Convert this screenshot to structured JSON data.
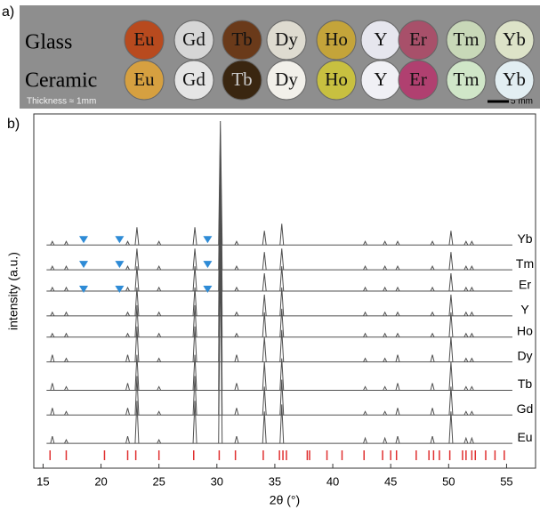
{
  "panel_a": {
    "label": "a)",
    "rows": [
      "Glass",
      "Ceramic"
    ],
    "elements": [
      "Eu",
      "Gd",
      "Tb",
      "Dy",
      "Ho",
      "Y",
      "Er",
      "Tm",
      "Yb"
    ],
    "note": "Thickness ≈ 1mm",
    "scale": "5 mm"
  },
  "chart_data": {
    "type": "spectrum",
    "label": "b)",
    "xlabel": "2θ (°)",
    "ylabel": "intensity (a.u.)",
    "xlim": [
      14.2,
      57.5
    ],
    "xticks": [
      15,
      20,
      25,
      30,
      35,
      40,
      45,
      50,
      55
    ],
    "ylim": [
      0,
      100
    ],
    "x": [
      15.8,
      17.0,
      22.3,
      23.1,
      25.0,
      28.1,
      30.3,
      31.7,
      34.1,
      35.6,
      42.8,
      44.5,
      45.6,
      48.6,
      50.2,
      51.5,
      52.0
    ],
    "color": "#505050",
    "series": [
      {
        "name": "Eu",
        "baseline": 7,
        "values": [
          9,
          8,
          9,
          19,
          8,
          19,
          60,
          9,
          16,
          18,
          8.5,
          8.5,
          9,
          9,
          16,
          8.5,
          8.5
        ]
      },
      {
        "name": "Gd",
        "baseline": 15,
        "values": [
          17,
          16,
          17,
          26,
          16,
          26,
          70,
          17,
          23,
          25,
          16,
          16,
          17,
          17,
          23,
          16,
          16
        ]
      },
      {
        "name": "Tb",
        "baseline": 22,
        "values": [
          24,
          23,
          24,
          32,
          23,
          32,
          75,
          24,
          30,
          31,
          23,
          23,
          24,
          24,
          30,
          23,
          23
        ]
      },
      {
        "name": "Dy",
        "baseline": 30,
        "values": [
          32,
          31,
          32,
          40,
          31,
          40,
          80,
          32,
          37,
          39,
          31,
          31,
          32,
          32,
          37,
          31,
          31
        ]
      },
      {
        "name": "Ho",
        "baseline": 37,
        "values": [
          38,
          38,
          38,
          46,
          38,
          46,
          85,
          38,
          44,
          45,
          38,
          38,
          38,
          38,
          44,
          38,
          38
        ]
      },
      {
        "name": "Y",
        "baseline": 43,
        "values": [
          44,
          44,
          44,
          51,
          44,
          51,
          88,
          44,
          49,
          51,
          44,
          44,
          44,
          44,
          49,
          44,
          44
        ]
      },
      {
        "name": "Er",
        "baseline": 50,
        "values": [
          51,
          51,
          51,
          57,
          51,
          57,
          90,
          51,
          55,
          57,
          51,
          51,
          51,
          51,
          55,
          51,
          51
        ]
      },
      {
        "name": "Tm",
        "baseline": 56,
        "values": [
          57,
          57,
          57,
          62,
          57,
          62,
          94,
          57,
          61,
          62,
          57,
          57,
          57,
          57,
          61,
          57,
          57
        ]
      },
      {
        "name": "Yb",
        "baseline": 63,
        "values": [
          64,
          64,
          64,
          68,
          64,
          68,
          98,
          64,
          67,
          69,
          64,
          64,
          64,
          64,
          67,
          64,
          64
        ]
      }
    ],
    "markers": {
      "color": "#2e8bd6",
      "points": [
        {
          "x": 18.5,
          "y": 64.5
        },
        {
          "x": 21.6,
          "y": 64.5
        },
        {
          "x": 29.2,
          "y": 64.5
        },
        {
          "x": 18.5,
          "y": 57.5
        },
        {
          "x": 21.6,
          "y": 57.5
        },
        {
          "x": 29.2,
          "y": 57.5
        },
        {
          "x": 18.5,
          "y": 50.5
        },
        {
          "x": 21.6,
          "y": 50.5
        },
        {
          "x": 29.2,
          "y": 50.5
        }
      ]
    },
    "reference": {
      "color": "#e03030",
      "x": [
        15.6,
        17.0,
        20.3,
        22.3,
        23.0,
        25.0,
        28.0,
        30.2,
        31.6,
        34.0,
        35.4,
        35.7,
        36.0,
        37.8,
        38.0,
        39.5,
        40.8,
        42.7,
        44.3,
        45.0,
        45.5,
        47.2,
        48.3,
        48.7,
        49.2,
        50.1,
        51.2,
        51.5,
        52.0,
        52.3,
        53.2,
        54.0,
        54.8
      ]
    }
  }
}
